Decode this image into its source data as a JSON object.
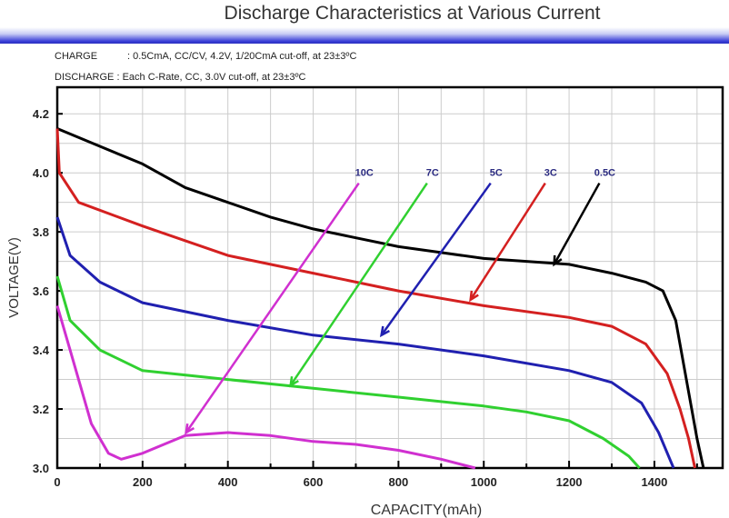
{
  "header": {
    "title": "Discharge Characteristics at Various Current"
  },
  "conditions": {
    "charge_label": "CHARGE",
    "charge_text": ": 0.5CmA, CC/CV, 4.2V, 1/20CmA cut-off, at 23±3ºC",
    "discharge_label": "DISCHARGE",
    "discharge_text": ": Each C-Rate, CC, 3.0V cut-off, at 23±3ºC"
  },
  "chart_data": {
    "type": "line",
    "title": "Discharge Characteristics at Various Current",
    "xlabel": "CAPACITY(mAh)",
    "ylabel": "VOLTAGE(V)",
    "xlim": [
      0,
      1560
    ],
    "ylim": [
      3.0,
      4.29
    ],
    "xticks": [
      0,
      200,
      400,
      600,
      800,
      1000,
      1200,
      1400
    ],
    "yticks": [
      3.0,
      3.2,
      3.4,
      3.6,
      3.8,
      4.0,
      4.2
    ],
    "ytick_labels": [
      "3.0",
      "3.2",
      "3.4",
      "3.6",
      "3.8",
      "4.0",
      "4.2"
    ],
    "grid": true,
    "series": [
      {
        "name": "0.5C",
        "color": "#000000",
        "points": [
          [
            0,
            4.15
          ],
          [
            100,
            4.09
          ],
          [
            200,
            4.03
          ],
          [
            300,
            3.95
          ],
          [
            400,
            3.9
          ],
          [
            500,
            3.85
          ],
          [
            600,
            3.81
          ],
          [
            700,
            3.78
          ],
          [
            800,
            3.75
          ],
          [
            900,
            3.73
          ],
          [
            1000,
            3.71
          ],
          [
            1100,
            3.7
          ],
          [
            1200,
            3.69
          ],
          [
            1300,
            3.66
          ],
          [
            1380,
            3.63
          ],
          [
            1420,
            3.6
          ],
          [
            1450,
            3.5
          ],
          [
            1475,
            3.3
          ],
          [
            1500,
            3.1
          ],
          [
            1515,
            3.0
          ]
        ],
        "arrow": [
          [
            1271,
            3.965
          ],
          [
            1165,
            3.69
          ]
        ]
      },
      {
        "name": "3C",
        "color": "#d42020",
        "points": [
          [
            0,
            4.15
          ],
          [
            5,
            4.0
          ],
          [
            50,
            3.9
          ],
          [
            200,
            3.82
          ],
          [
            400,
            3.72
          ],
          [
            600,
            3.66
          ],
          [
            800,
            3.6
          ],
          [
            1000,
            3.55
          ],
          [
            1200,
            3.51
          ],
          [
            1300,
            3.48
          ],
          [
            1380,
            3.42
          ],
          [
            1430,
            3.32
          ],
          [
            1460,
            3.2
          ],
          [
            1480,
            3.1
          ],
          [
            1495,
            3.0
          ]
        ],
        "arrow": [
          [
            1144,
            3.965
          ],
          [
            969,
            3.57
          ]
        ]
      },
      {
        "name": "5C",
        "color": "#2020b0",
        "points": [
          [
            0,
            3.85
          ],
          [
            30,
            3.72
          ],
          [
            100,
            3.63
          ],
          [
            200,
            3.56
          ],
          [
            400,
            3.5
          ],
          [
            600,
            3.45
          ],
          [
            800,
            3.42
          ],
          [
            1000,
            3.38
          ],
          [
            1200,
            3.33
          ],
          [
            1300,
            3.29
          ],
          [
            1370,
            3.22
          ],
          [
            1410,
            3.12
          ],
          [
            1445,
            3.0
          ]
        ],
        "arrow": [
          [
            1016,
            3.965
          ],
          [
            760,
            3.45
          ]
        ]
      },
      {
        "name": "7C",
        "color": "#30d030",
        "points": [
          [
            0,
            3.65
          ],
          [
            30,
            3.5
          ],
          [
            100,
            3.4
          ],
          [
            200,
            3.33
          ],
          [
            400,
            3.3
          ],
          [
            600,
            3.27
          ],
          [
            800,
            3.24
          ],
          [
            1000,
            3.21
          ],
          [
            1100,
            3.19
          ],
          [
            1200,
            3.16
          ],
          [
            1280,
            3.1
          ],
          [
            1340,
            3.04
          ],
          [
            1365,
            3.0
          ]
        ],
        "arrow": [
          [
            867,
            3.965
          ],
          [
            547,
            3.28
          ]
        ]
      },
      {
        "name": "10C",
        "color": "#d030d0",
        "points": [
          [
            0,
            3.55
          ],
          [
            30,
            3.4
          ],
          [
            80,
            3.15
          ],
          [
            120,
            3.05
          ],
          [
            150,
            3.03
          ],
          [
            200,
            3.05
          ],
          [
            300,
            3.11
          ],
          [
            400,
            3.12
          ],
          [
            500,
            3.11
          ],
          [
            600,
            3.09
          ],
          [
            700,
            3.08
          ],
          [
            800,
            3.06
          ],
          [
            900,
            3.03
          ],
          [
            980,
            3.0
          ]
        ],
        "arrow": [
          [
            707,
            3.965
          ],
          [
            302,
            3.12
          ]
        ]
      }
    ]
  }
}
